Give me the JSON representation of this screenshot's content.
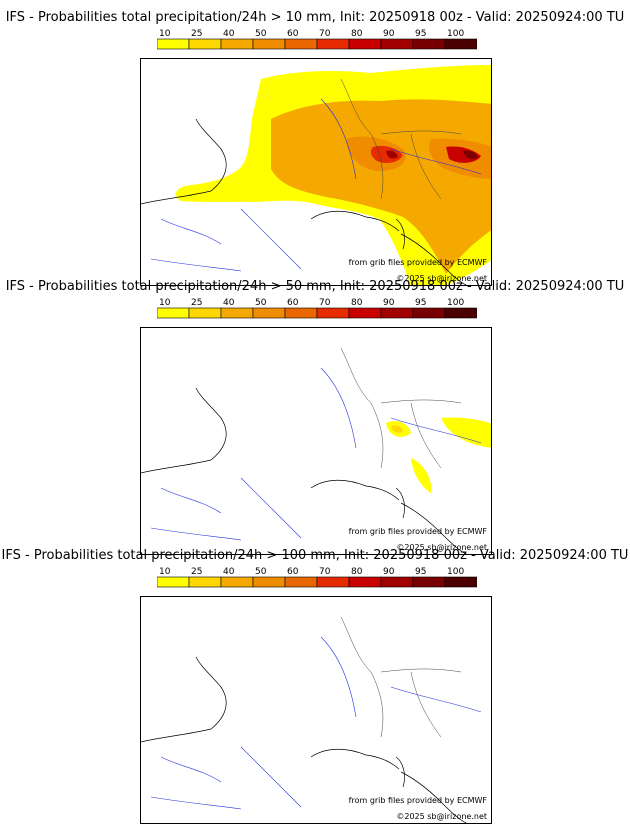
{
  "colors": [
    "#ffff00",
    "#ffd700",
    "#f5a800",
    "#ef8c00",
    "#e96600",
    "#e62b00",
    "#c80000",
    "#a00000",
    "#780000",
    "#4a0000"
  ],
  "legend_ticks": [
    "10",
    "25",
    "40",
    "50",
    "60",
    "70",
    "80",
    "90",
    "95",
    "100"
  ],
  "credits": {
    "source": "from grib files provided by ECMWF",
    "copyright": "©2025 sb@irizone.net"
  },
  "panels": [
    {
      "title": "IFS - Probabilities total precipitation/24h > 10 mm, Init: 20250918 00z - Valid: 20250924:00 TU"
    },
    {
      "title": "IFS - Probabilities total precipitation/24h > 50 mm, Init: 20250918 00z - Valid: 20250924:00 TU"
    },
    {
      "title": "IFS - Probabilities total precipitation/24h > 100 mm, Init: 20250918 00z - Valid: 20250924:00 TU"
    }
  ]
}
